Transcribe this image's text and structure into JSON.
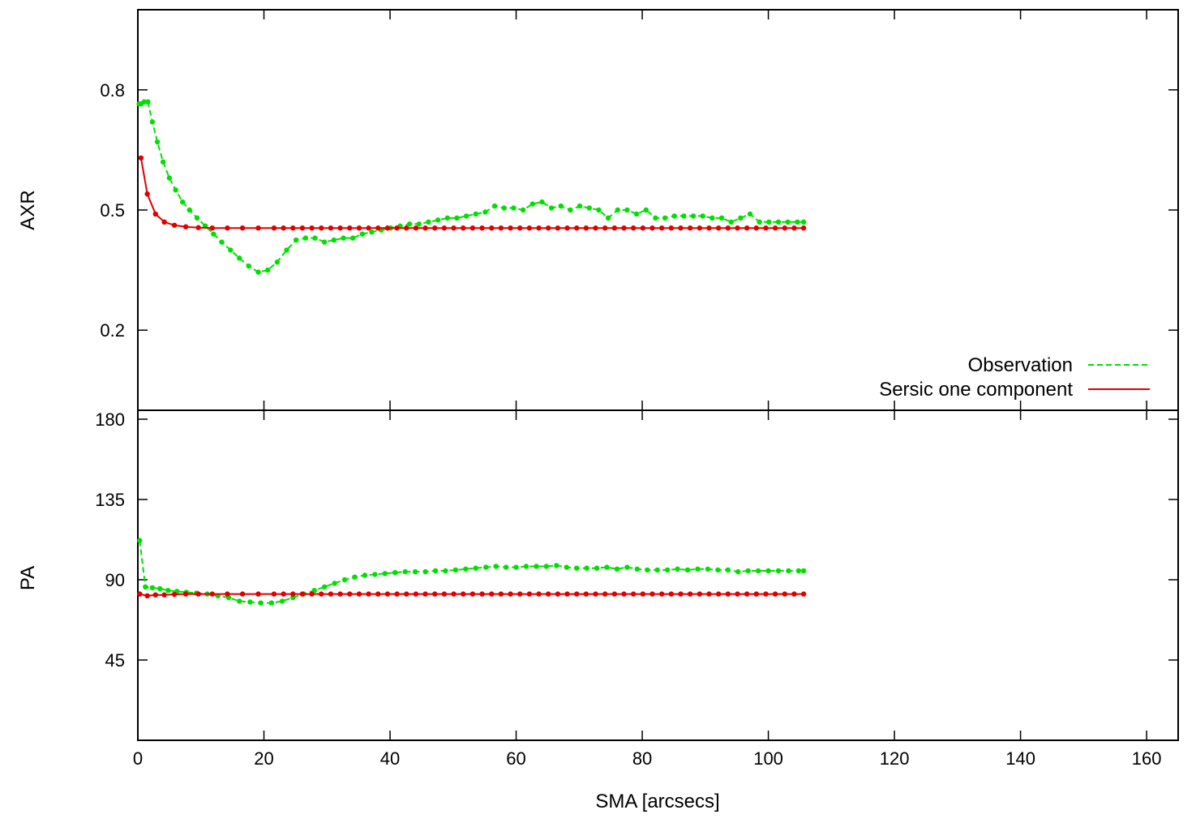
{
  "chart_data": [
    {
      "type": "line",
      "panel": "top",
      "ylabel": "AXR",
      "xlabel": "",
      "xlim": [
        0,
        165
      ],
      "ylim": [
        0.0,
        1.0
      ],
      "yticks": [
        0.2,
        0.5,
        0.8
      ],
      "ytick_labels": [
        "0.2",
        "0.5",
        "0.8"
      ],
      "grid": false,
      "legend": "bottom-right",
      "series": [
        {
          "name": "Observation",
          "color": "#00e000",
          "style": "dashed-with-points",
          "x": [
            0.2,
            0.5,
            1.0,
            1.6,
            2.3,
            3.1,
            4.0,
            5.0,
            6.0,
            7.1,
            8.2,
            9.4,
            10.7,
            12.0,
            13.3,
            14.7,
            16.1,
            17.6,
            19.1,
            20.6,
            22.1,
            23.6,
            25.1,
            26.6,
            28.1,
            29.6,
            31.1,
            32.6,
            34.1,
            35.6,
            37.1,
            38.6,
            40.1,
            41.6,
            43.1,
            44.6,
            46.1,
            47.6,
            49.1,
            50.6,
            52.1,
            53.6,
            55.1,
            56.6,
            58.1,
            59.6,
            61.1,
            62.6,
            64.1,
            65.6,
            67.1,
            68.6,
            70.1,
            71.6,
            73.1,
            74.6,
            76.1,
            77.6,
            79.1,
            80.6,
            82.1,
            83.6,
            85.1,
            86.6,
            88.1,
            89.6,
            91.1,
            92.6,
            94.1,
            95.6,
            97.1,
            98.6,
            100.1,
            101.6,
            103.1,
            104.6,
            105.6
          ],
          "y": [
            0.765,
            0.765,
            0.77,
            0.77,
            0.72,
            0.67,
            0.62,
            0.58,
            0.55,
            0.52,
            0.5,
            0.48,
            0.46,
            0.44,
            0.42,
            0.4,
            0.38,
            0.36,
            0.345,
            0.35,
            0.37,
            0.4,
            0.425,
            0.43,
            0.43,
            0.42,
            0.425,
            0.43,
            0.43,
            0.44,
            0.445,
            0.45,
            0.455,
            0.46,
            0.465,
            0.465,
            0.47,
            0.475,
            0.48,
            0.48,
            0.485,
            0.49,
            0.495,
            0.51,
            0.505,
            0.505,
            0.5,
            0.515,
            0.52,
            0.505,
            0.51,
            0.5,
            0.51,
            0.505,
            0.5,
            0.48,
            0.5,
            0.5,
            0.49,
            0.5,
            0.48,
            0.48,
            0.485,
            0.485,
            0.485,
            0.485,
            0.48,
            0.48,
            0.47,
            0.48,
            0.49,
            0.47,
            0.47,
            0.47,
            0.47,
            0.47,
            0.47
          ]
        },
        {
          "name": "Sersic one component",
          "color": "#e00000",
          "style": "solid-with-points",
          "x": [
            0.5,
            1.5,
            2.8,
            4.2,
            5.8,
            7.6,
            9.6,
            11.8,
            14.2,
            16.6,
            19.1,
            21.6,
            23.1,
            24.6,
            26.1,
            27.6,
            29.1,
            30.6,
            32.1,
            33.6,
            35.1,
            36.6,
            38.1,
            39.6,
            41.1,
            42.6,
            44.1,
            45.6,
            47.1,
            48.6,
            50.1,
            51.6,
            53.1,
            54.6,
            56.1,
            57.6,
            59.1,
            60.6,
            62.1,
            63.6,
            65.1,
            66.6,
            68.1,
            69.6,
            71.1,
            72.6,
            74.1,
            75.6,
            77.1,
            78.6,
            80.1,
            81.6,
            83.1,
            84.6,
            86.1,
            87.6,
            89.1,
            90.6,
            92.1,
            93.6,
            95.1,
            96.6,
            98.1,
            99.6,
            101.1,
            102.6,
            104.1,
            105.6
          ],
          "y": [
            0.63,
            0.54,
            0.49,
            0.47,
            0.462,
            0.458,
            0.456,
            0.455,
            0.455,
            0.455,
            0.455,
            0.455,
            0.455,
            0.455,
            0.455,
            0.455,
            0.455,
            0.455,
            0.455,
            0.455,
            0.455,
            0.455,
            0.455,
            0.455,
            0.455,
            0.455,
            0.455,
            0.455,
            0.455,
            0.455,
            0.455,
            0.455,
            0.455,
            0.455,
            0.455,
            0.455,
            0.455,
            0.455,
            0.455,
            0.455,
            0.455,
            0.455,
            0.455,
            0.455,
            0.455,
            0.455,
            0.455,
            0.455,
            0.455,
            0.455,
            0.455,
            0.455,
            0.455,
            0.455,
            0.455,
            0.455,
            0.455,
            0.455,
            0.455,
            0.455,
            0.455,
            0.455,
            0.455,
            0.455,
            0.455,
            0.455,
            0.455,
            0.455
          ]
        }
      ]
    },
    {
      "type": "line",
      "panel": "bottom",
      "ylabel": "PA",
      "xlabel": "SMA [arcsecs]",
      "xlim": [
        0,
        165
      ],
      "xticks": [
        0,
        20,
        40,
        60,
        80,
        100,
        120,
        140,
        160
      ],
      "xtick_labels": [
        "0",
        "20",
        "40",
        "60",
        "80",
        "100",
        "120",
        "140",
        "160"
      ],
      "ylim": [
        0,
        185
      ],
      "yticks": [
        45,
        90,
        135,
        180
      ],
      "ytick_labels": [
        "45",
        "90",
        "135",
        "180"
      ],
      "grid": false,
      "series": [
        {
          "name": "Observation",
          "color": "#00e000",
          "style": "dashed-with-points",
          "x": [
            0.3,
            1.2,
            2.3,
            3.5,
            4.8,
            6.2,
            7.7,
            9.3,
            11.0,
            12.7,
            14.4,
            16.1,
            17.8,
            19.5,
            21.2,
            22.9,
            24.6,
            26.3,
            28.0,
            29.6,
            31.2,
            32.8,
            34.4,
            36.0,
            37.6,
            39.2,
            40.8,
            42.4,
            44.0,
            45.6,
            47.2,
            48.8,
            50.4,
            52.0,
            53.6,
            55.2,
            56.8,
            58.4,
            60.0,
            61.6,
            63.2,
            64.8,
            66.4,
            68.0,
            69.6,
            71.2,
            72.8,
            74.4,
            76.0,
            77.6,
            79.2,
            80.8,
            82.4,
            84.0,
            85.6,
            87.2,
            88.8,
            90.4,
            92.0,
            93.6,
            95.2,
            96.8,
            98.4,
            100.0,
            101.6,
            103.2,
            104.8,
            105.6
          ],
          "y": [
            112,
            86,
            85.5,
            85,
            84,
            83.5,
            83,
            82.5,
            82,
            81,
            80,
            78,
            77.5,
            77,
            77,
            78,
            80,
            82,
            84,
            86,
            88,
            90,
            91.5,
            92.5,
            93,
            93.5,
            94,
            94.5,
            94.5,
            94.5,
            95,
            95,
            95.5,
            96,
            96.5,
            97,
            97.5,
            97,
            97,
            97.5,
            97.5,
            97.5,
            98,
            97,
            96.5,
            96.5,
            96.5,
            97,
            96,
            97,
            96,
            95.5,
            95.5,
            95.5,
            96,
            95.5,
            96,
            96,
            95.5,
            95.5,
            94.5,
            95,
            95,
            95,
            95,
            95,
            95,
            95
          ]
        },
        {
          "name": "Sersic one component",
          "color": "#e00000",
          "style": "solid-with-points",
          "x": [
            0.3,
            1.5,
            2.8,
            4.2,
            5.8,
            7.6,
            9.6,
            11.8,
            14.2,
            16.6,
            19.1,
            21.6,
            23.1,
            24.6,
            26.1,
            27.6,
            29.1,
            30.6,
            32.1,
            33.6,
            35.1,
            36.6,
            38.1,
            39.6,
            41.1,
            42.6,
            44.1,
            45.6,
            47.1,
            48.6,
            50.1,
            51.6,
            53.1,
            54.6,
            56.1,
            57.6,
            59.1,
            60.6,
            62.1,
            63.6,
            65.1,
            66.6,
            68.1,
            69.6,
            71.1,
            72.6,
            74.1,
            75.6,
            77.1,
            78.6,
            80.1,
            81.6,
            83.1,
            84.6,
            86.1,
            87.6,
            89.1,
            90.6,
            92.1,
            93.6,
            95.1,
            96.6,
            98.1,
            99.6,
            101.1,
            102.6,
            104.1,
            105.6
          ],
          "y": [
            82,
            81,
            81.5,
            81.5,
            81.8,
            82,
            82,
            82,
            82,
            82,
            82,
            82,
            82,
            82,
            82,
            82,
            82,
            82,
            82,
            82,
            82,
            82,
            82,
            82,
            82,
            82,
            82,
            82,
            82,
            82,
            82,
            82,
            82,
            82,
            82,
            82,
            82,
            82,
            82,
            82,
            82,
            82,
            82,
            82,
            82,
            82,
            82,
            82,
            82,
            82,
            82,
            82,
            82,
            82,
            82,
            82,
            82,
            82,
            82,
            82,
            82,
            82,
            82,
            82,
            82,
            82,
            82,
            82
          ]
        }
      ]
    }
  ]
}
